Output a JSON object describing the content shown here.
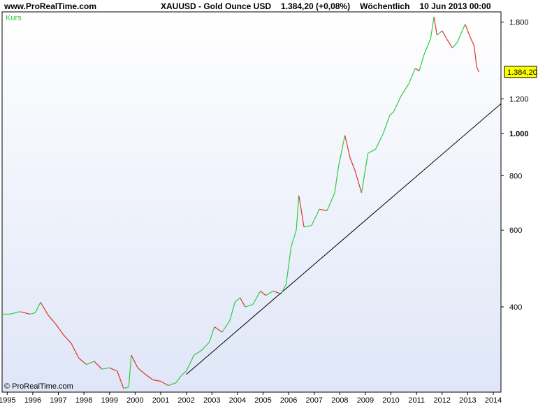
{
  "header": {
    "site": "www.ProRealTime.com",
    "symbol": "XAUUSD - Gold Ounce USD",
    "price_change": "1.384,20 (+0,08%)",
    "interval": "Wöchentlich",
    "datetime": "10 Jun 2013 00:00"
  },
  "colors": {
    "up": "#2ecc40",
    "down": "#e0332b",
    "trendline": "#000000",
    "price_badge": "#ffff00",
    "legend_text": "#33cc33",
    "bg_top": "#ffffff",
    "bg_bottom": "#dfe6f7"
  },
  "chart_data": {
    "type": "line",
    "legend": [
      "Kurs"
    ],
    "y_scale": "log",
    "ylim": [
      255,
      1900
    ],
    "xlim": [
      1994.8,
      2014.3
    ],
    "y_ticks": [
      {
        "value": 1800,
        "label": "1.800"
      },
      {
        "value": 1200,
        "label": "1.200"
      },
      {
        "value": 1000,
        "label": "1.000"
      },
      {
        "value": 800,
        "label": "800"
      },
      {
        "value": 600,
        "label": "600"
      },
      {
        "value": 400,
        "label": "400"
      }
    ],
    "x_ticks": [
      "1995",
      "1996",
      "1997",
      "1998",
      "1999",
      "2000",
      "2001",
      "2002",
      "2003",
      "2004",
      "2005",
      "2006",
      "2007",
      "2008",
      "2009",
      "2010",
      "2011",
      "2012",
      "2013",
      "2014"
    ],
    "last_value_label": "1.384,20",
    "series": [
      {
        "x": [
          1994.8,
          1995.1,
          1995.5,
          1995.9,
          1996.1,
          1996.3,
          1996.6,
          1996.9,
          1997.2,
          1997.5,
          1997.8,
          1998.1,
          1998.4,
          1998.7,
          1999.0,
          1999.3,
          1999.55,
          1999.75,
          1999.85,
          2000.1,
          2000.4,
          2000.7,
          2001.0,
          2001.3,
          2001.6,
          2001.8,
          2002.0,
          2002.3,
          2002.6,
          2002.9,
          2003.1,
          2003.4,
          2003.7,
          2003.9,
          2004.1,
          2004.3,
          2004.6,
          2004.9,
          2005.1,
          2005.4,
          2005.7,
          2005.9,
          2006.1,
          2006.3,
          2006.4,
          2006.6,
          2006.9,
          2007.2,
          2007.5,
          2007.8,
          2007.95,
          2008.2,
          2008.4,
          2008.6,
          2008.85,
          2009.1,
          2009.4,
          2009.7,
          2009.95,
          2010.1,
          2010.4,
          2010.7,
          2010.95,
          2011.1,
          2011.3,
          2011.55,
          2011.68,
          2011.8,
          2012.0,
          2012.2,
          2012.4,
          2012.6,
          2012.75,
          2012.9,
          2013.1,
          2013.25,
          2013.35,
          2013.44
        ],
        "y": [
          385,
          385,
          390,
          385,
          388,
          410,
          383,
          365,
          345,
          330,
          305,
          295,
          300,
          288,
          290,
          285,
          260,
          262,
          310,
          290,
          280,
          272,
          270,
          264,
          268,
          278,
          285,
          310,
          318,
          332,
          360,
          350,
          372,
          410,
          420,
          400,
          405,
          435,
          425,
          435,
          428,
          450,
          550,
          600,
          720,
          610,
          615,
          670,
          665,
          730,
          840,
          990,
          880,
          820,
          730,
          900,
          920,
          1000,
          1100,
          1120,
          1220,
          1300,
          1410,
          1390,
          1520,
          1650,
          1850,
          1680,
          1720,
          1640,
          1570,
          1620,
          1700,
          1780,
          1660,
          1590,
          1420,
          1384
        ]
      }
    ],
    "trendline": {
      "x": [
        2002.0,
        2014.3
      ],
      "y": [
        280,
        1170
      ]
    }
  },
  "footer": {
    "copyright": "© ProRealTime.com"
  }
}
